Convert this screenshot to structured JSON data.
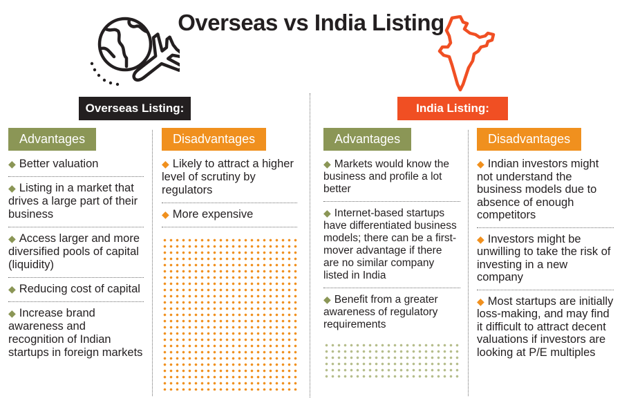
{
  "title": "Overseas vs India Listing",
  "sections": {
    "overseas": {
      "label": "Overseas Listing:",
      "advantages": {
        "heading": "Advantages",
        "items": [
          "Better valuation",
          "Listing in a market that drives a large part of their business",
          "Access larger and more diversified pools of capital (liquidity)",
          "Reducing cost of capital",
          "Increase brand awareness and recognition of Indian startups in foreign markets"
        ]
      },
      "disadvantages": {
        "heading": "Disadvantages",
        "items": [
          "Likely to attract a higher level of scrutiny by regulators",
          "More expensive"
        ]
      }
    },
    "india": {
      "label": "India Listing:",
      "advantages": {
        "heading": "Advantages",
        "items": [
          "Markets would know the business and profile a lot better",
          "Internet-based startups have differentiated business models; there can be a first-mover advantage if there are no similar company listed in India",
          "Benefit from a greater awareness of regulatory requirements"
        ]
      },
      "disadvantages": {
        "heading": "Disadvantages",
        "items": [
          "Indian investors might not understand the business models due to absence of enough competitors",
          "Investors might be unwilling to take the risk of investing in a new company",
          "Most startups are initially loss-making, and may find it difficult to attract decent valuations if investors are looking at P/E multiples"
        ]
      }
    }
  },
  "icons": {
    "overseas": "globe-plane-icon",
    "india": "india-map-icon",
    "bullet": "diamond-bullet-icon"
  },
  "colors": {
    "advantage": "#8b9656",
    "disadvantage": "#f0901e",
    "overseas_label": "#231f20",
    "india_label": "#f04f23"
  }
}
